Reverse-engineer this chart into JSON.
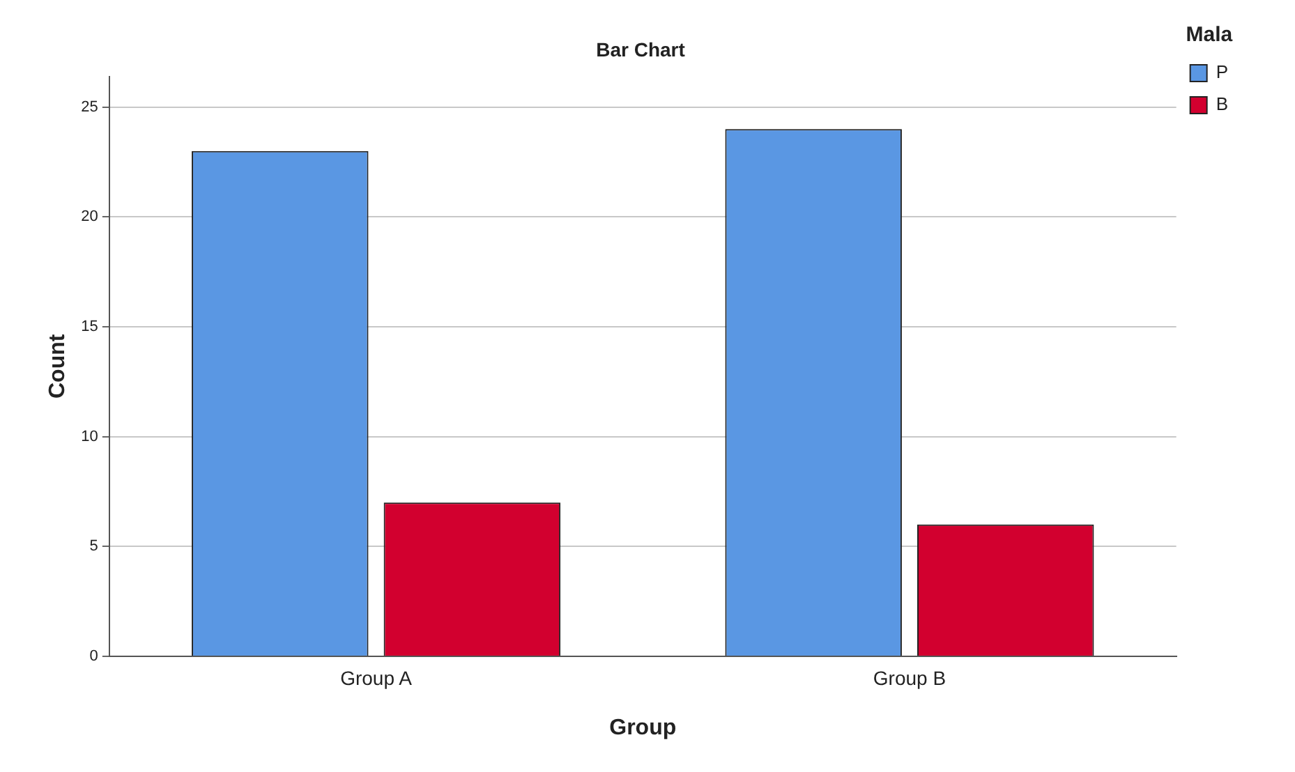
{
  "chart_data": {
    "type": "bar",
    "title": "Bar Chart",
    "xlabel": "Group",
    "ylabel": "Count",
    "legend_title": "Mala",
    "categories": [
      "Group A",
      "Group B"
    ],
    "series": [
      {
        "name": "P",
        "color": "#5a97e3",
        "values": [
          23,
          24
        ]
      },
      {
        "name": "B",
        "color": "#d2002f",
        "values": [
          7,
          6
        ]
      }
    ],
    "ylim": [
      0,
      26.4
    ],
    "yticks": [
      0,
      5,
      10,
      15,
      20,
      25
    ],
    "grid": "y",
    "legend": "top right"
  }
}
